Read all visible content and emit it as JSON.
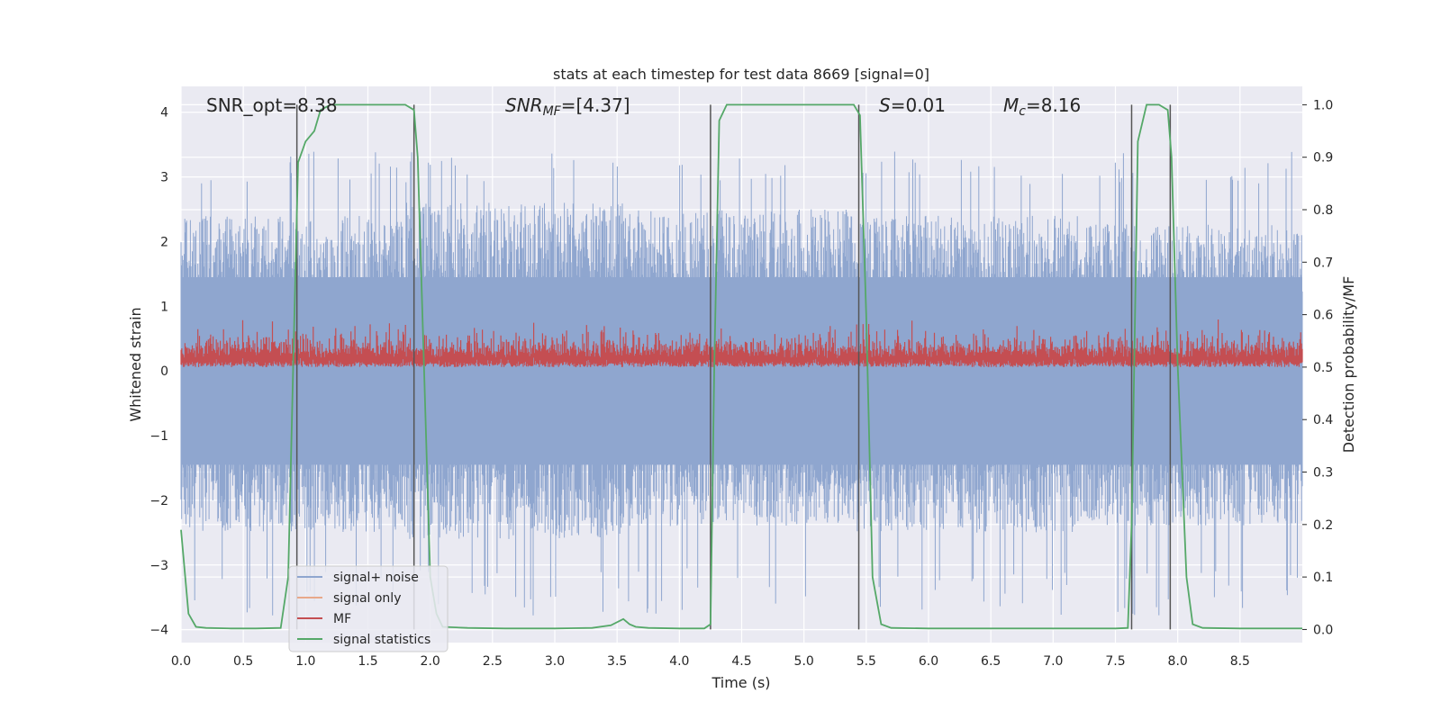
{
  "chart_data": {
    "type": "line",
    "title": "stats at each timestep for test data 8669 [signal=0]",
    "xlabel": "Time (s)",
    "ylabel": "Whitened strain",
    "ylabel_right": "Detection probability/MF",
    "xlim": [
      0,
      9
    ],
    "ylim": [
      -4.2,
      4.4
    ],
    "ylim_right": [
      -0.025,
      1.035
    ],
    "x_ticks": [
      0.0,
      0.5,
      1.0,
      1.5,
      2.0,
      2.5,
      3.0,
      3.5,
      4.0,
      4.5,
      5.0,
      5.5,
      6.0,
      6.5,
      7.0,
      7.5,
      8.0,
      8.5
    ],
    "x_tick_labels": [
      "0.0",
      "0.5",
      "1.0",
      "1.5",
      "2.0",
      "2.5",
      "3.0",
      "3.5",
      "4.0",
      "4.5",
      "5.0",
      "5.5",
      "6.0",
      "6.5",
      "7.0",
      "7.5",
      "8.0",
      "8.5"
    ],
    "y_ticks": [
      4,
      3,
      2,
      1,
      0,
      -1,
      -2,
      -3,
      -4
    ],
    "y_tick_labels": [
      "4",
      "3",
      "2",
      "1",
      "0",
      "−1",
      "−2",
      "−3",
      "−4"
    ],
    "y_ticks_right": [
      1.0,
      0.9,
      0.8,
      0.7,
      0.6,
      0.5,
      0.4,
      0.3,
      0.2,
      0.1,
      0.0
    ],
    "y_tick_labels_right": [
      "1.0",
      "0.9",
      "0.8",
      "0.7",
      "0.6",
      "0.5",
      "0.4",
      "0.3",
      "0.2",
      "0.1",
      "0.0"
    ],
    "grid": true,
    "legend_position": "bottom-left",
    "annotations": {
      "snr_opt": "SNR_opt=8.38",
      "snr_mf_sym": "SNR",
      "snr_mf_sub": "MF",
      "snr_mf_rest": "=[4.37]",
      "s_sym": "S",
      "s_rest": "=0.01",
      "mc_sym": "M",
      "mc_sub": "c",
      "mc_rest": "=8.16"
    },
    "vertical_lines_x": [
      0.93,
      1.87,
      4.25,
      5.44,
      7.63,
      7.94
    ],
    "series": [
      {
        "name": "signal+ noise",
        "color": "#8fa6cf",
        "style": "noise",
        "envelope_pos": [
          2.4,
          2.6,
          2.5,
          2.4,
          2.3
        ],
        "envelope_neg": [
          -2.5,
          -2.6,
          -2.4,
          -2.5,
          -2.4
        ],
        "peak_max": 3.4,
        "trough_min": -3.8,
        "y_center": 0
      },
      {
        "name": "signal only",
        "color": "#e8a88a",
        "style": "flat",
        "values_right": 0.5
      },
      {
        "name": "MF",
        "color": "#c44e52",
        "style": "noise_right",
        "baseline_right": 0.5,
        "range_right": [
          0.5,
          0.6
        ]
      },
      {
        "name": "signal statistics",
        "color": "#55a868",
        "style": "line",
        "x": [
          0.0,
          0.06,
          0.12,
          0.2,
          0.4,
          0.6,
          0.8,
          0.86,
          0.9,
          0.94,
          1.0,
          1.07,
          1.12,
          1.2,
          1.4,
          1.6,
          1.8,
          1.87,
          1.9,
          1.95,
          2.0,
          2.05,
          2.1,
          2.3,
          2.6,
          3.0,
          3.3,
          3.45,
          3.55,
          3.6,
          3.65,
          3.75,
          4.0,
          4.2,
          4.25,
          4.28,
          4.32,
          4.38,
          4.45,
          4.8,
          5.2,
          5.4,
          5.45,
          5.5,
          5.55,
          5.62,
          5.7,
          6.0,
          6.5,
          7.0,
          7.5,
          7.6,
          7.63,
          7.68,
          7.75,
          7.85,
          7.92,
          7.95,
          8.0,
          8.07,
          8.12,
          8.2,
          8.5,
          9.0
        ],
        "y_right": [
          0.19,
          0.03,
          0.005,
          0.003,
          0.002,
          0.002,
          0.003,
          0.1,
          0.5,
          0.89,
          0.93,
          0.95,
          0.99,
          1.0,
          1.0,
          1.0,
          1.0,
          0.99,
          0.9,
          0.5,
          0.1,
          0.03,
          0.005,
          0.003,
          0.002,
          0.002,
          0.003,
          0.008,
          0.02,
          0.01,
          0.005,
          0.003,
          0.002,
          0.002,
          0.01,
          0.5,
          0.97,
          1.0,
          1.0,
          1.0,
          1.0,
          1.0,
          0.98,
          0.6,
          0.1,
          0.01,
          0.003,
          0.002,
          0.002,
          0.002,
          0.002,
          0.003,
          0.2,
          0.93,
          1.0,
          1.0,
          0.99,
          0.9,
          0.5,
          0.1,
          0.01,
          0.003,
          0.002,
          0.002
        ]
      }
    ]
  }
}
